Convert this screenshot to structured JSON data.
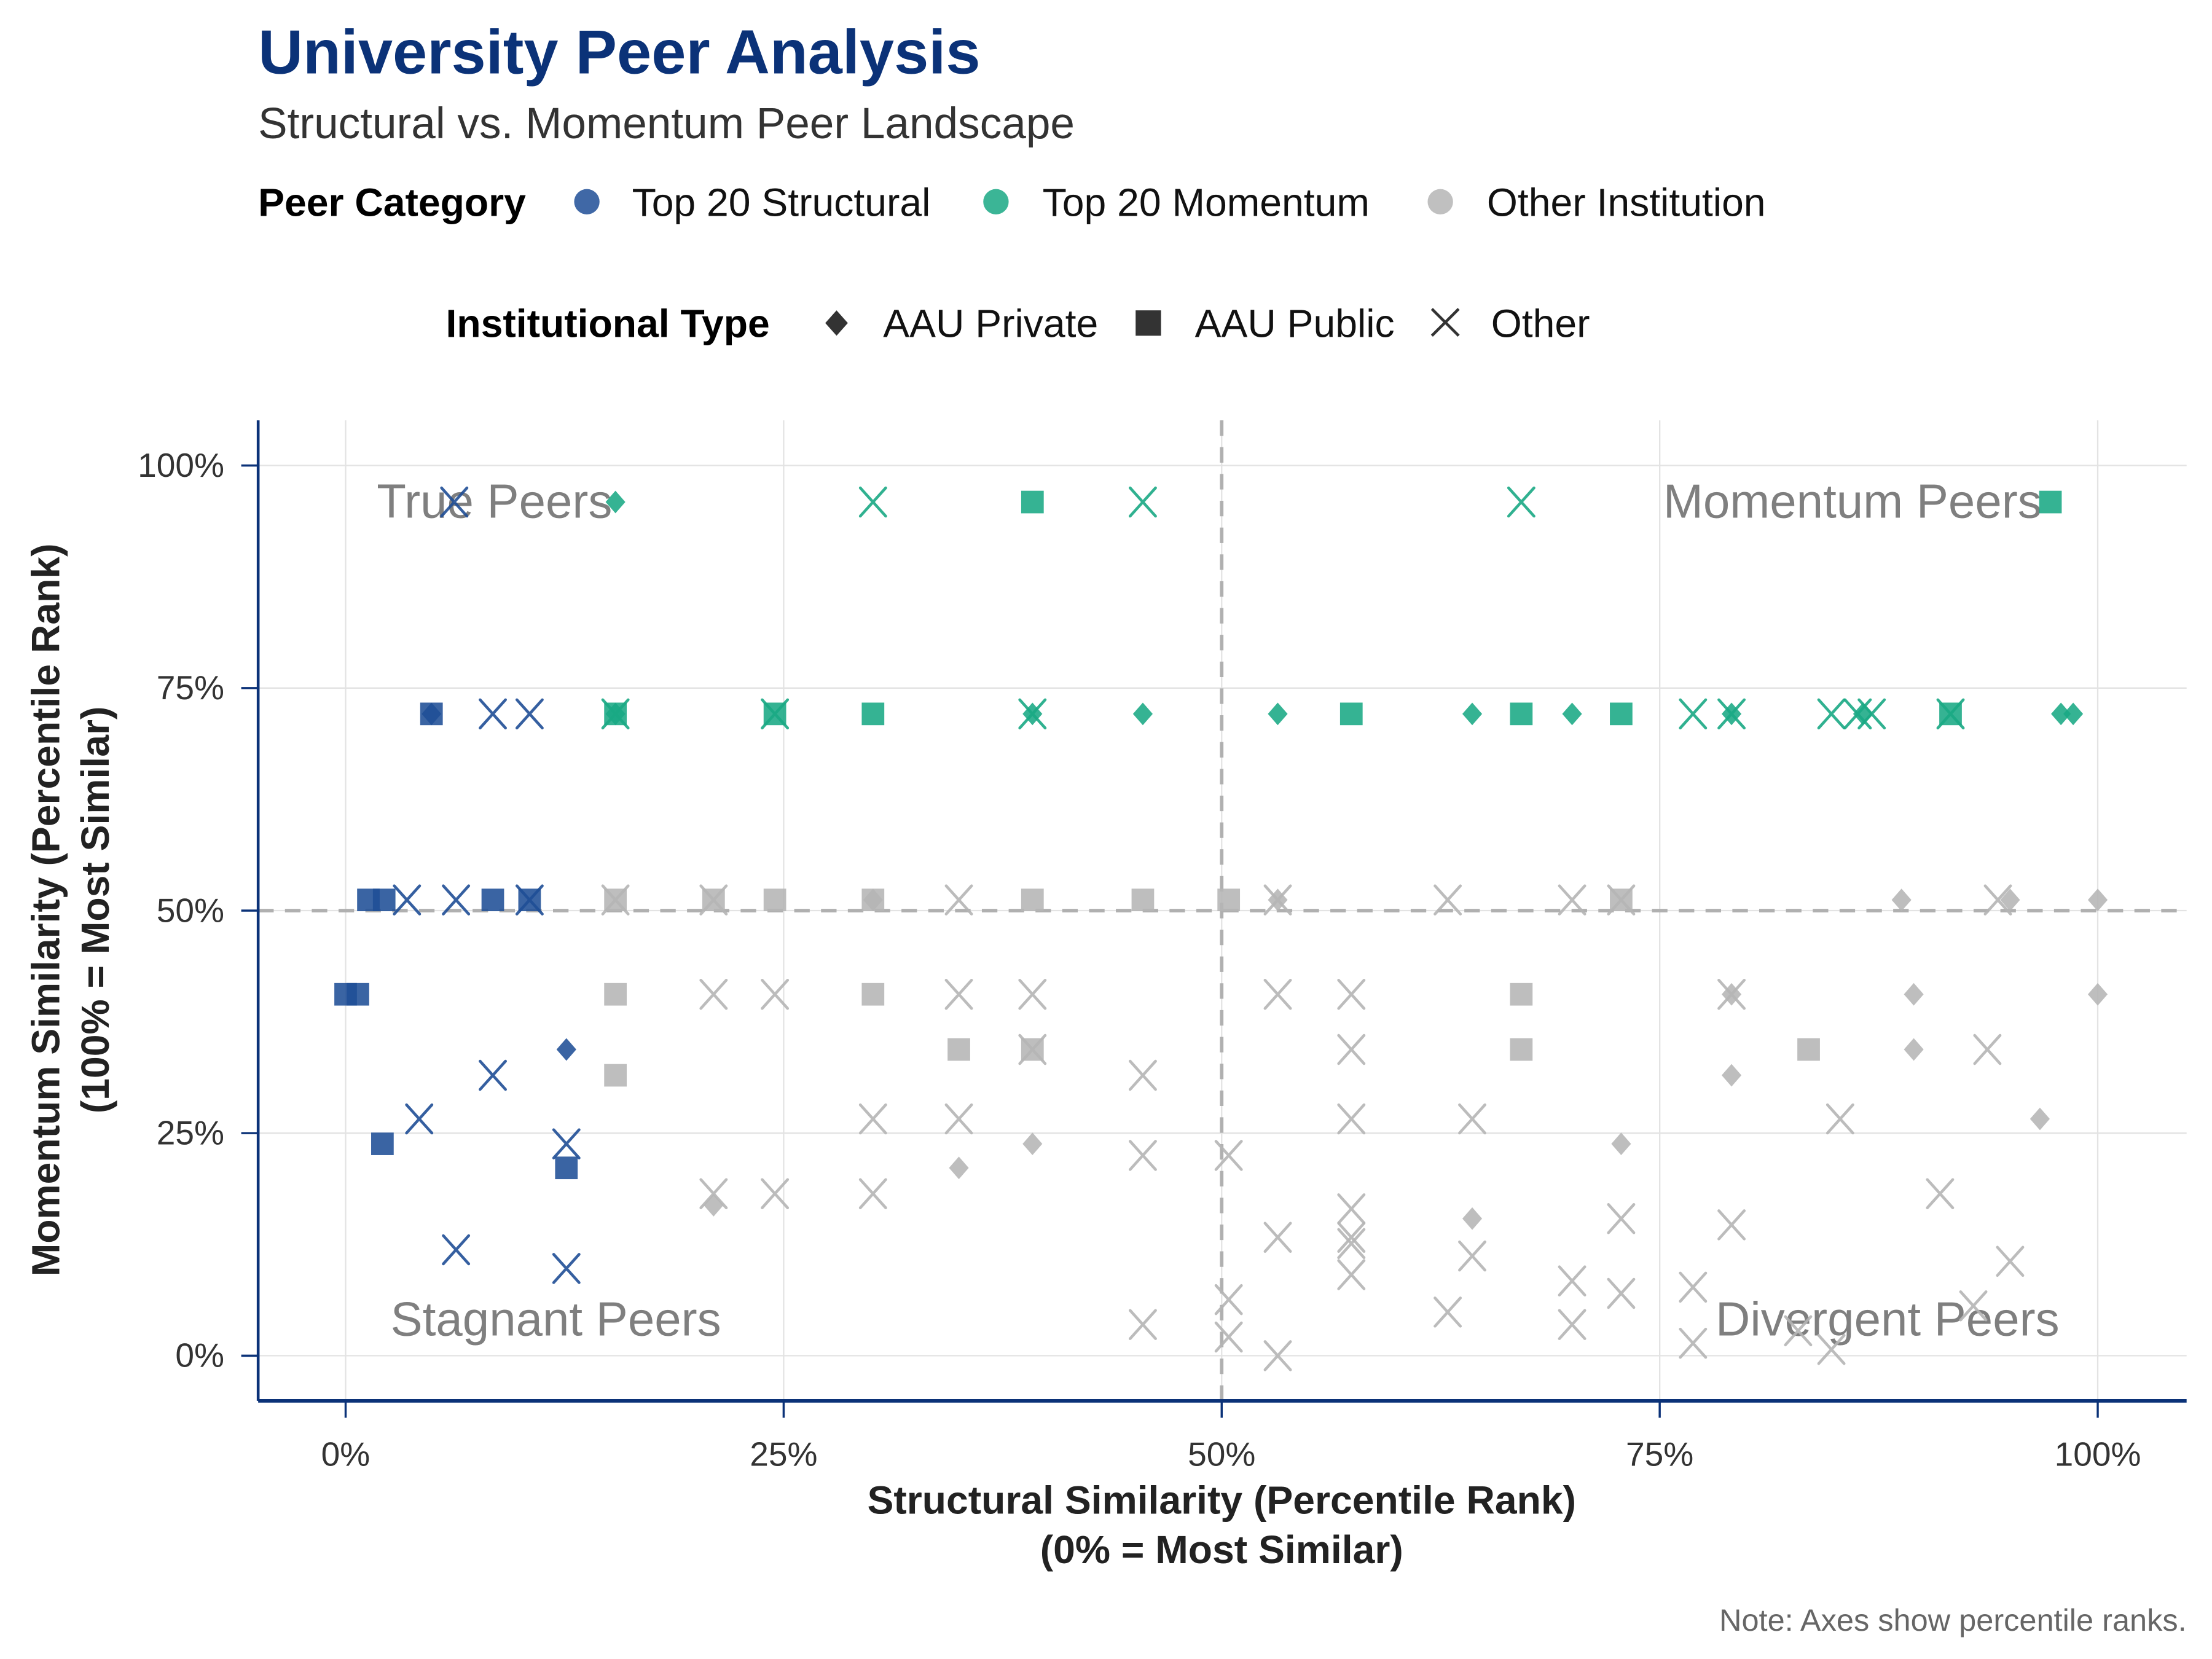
{
  "colors": {
    "title": "#0b3278",
    "top20_structural": "#1f4e96",
    "top20_momentum": "#19a884",
    "other": "#b5b5b5",
    "axis": "#0b3278",
    "grid": "#e3e3e3",
    "reference_line": "#b0b0b0",
    "quadrant_label": "#7f7f7f"
  },
  "chart_data": {
    "type": "scatter",
    "title": "University Peer Analysis",
    "subtitle": "Structural vs. Momentum Peer Landscape",
    "xlabel_lines": [
      "Structural Similarity (Percentile Rank)",
      "(0% = Most Similar)"
    ],
    "ylabel_lines": [
      "Momentum Similarity (Percentile Rank)",
      "(100% = Most Similar)"
    ],
    "xlim": [
      -5,
      105
    ],
    "ylim": [
      -5,
      105
    ],
    "x_ticks": [
      0,
      25,
      50,
      75,
      100
    ],
    "y_ticks": [
      0,
      25,
      50,
      75,
      100
    ],
    "x_tick_labels": [
      "0%",
      "25%",
      "50%",
      "75%",
      "100%"
    ],
    "y_tick_labels": [
      "0%",
      "25%",
      "50%",
      "75%",
      "100%"
    ],
    "grid": true,
    "reference_lines": {
      "x": 50,
      "y": 50,
      "style": "dashed"
    },
    "quadrant_labels": [
      {
        "text": "True Peers",
        "x": 8.5,
        "y": 95.9
      },
      {
        "text": "Momentum Peers",
        "x": 86,
        "y": 95.9
      },
      {
        "text": "Stagnant Peers",
        "x": 12,
        "y": 4
      },
      {
        "text": "Divergent Peers",
        "x": 88,
        "y": 4
      }
    ],
    "note": "Note: Axes show percentile ranks.",
    "legends": [
      {
        "title": "Peer Category",
        "key": "category",
        "placement": "top",
        "entries": [
          {
            "id": "structural",
            "label": "Top 20 Structural",
            "color": "#1f4e96"
          },
          {
            "id": "momentum",
            "label": "Top 20 Momentum",
            "color": "#19a884"
          },
          {
            "id": "other",
            "label": "Other Institution",
            "color": "#b5b5b5"
          }
        ]
      },
      {
        "title": "Institutional Type",
        "key": "type",
        "placement": "top",
        "entries": [
          {
            "id": "private",
            "label": "AAU Private",
            "shape": "diamond"
          },
          {
            "id": "public",
            "label": "AAU Public",
            "shape": "square"
          },
          {
            "id": "other",
            "label": "Other",
            "shape": "x"
          }
        ]
      }
    ],
    "series": [
      {
        "name": "Top 20 Structural",
        "category": "structural",
        "points": [
          {
            "x": 6.2,
            "y": 95.9,
            "type": "other"
          },
          {
            "x": 4.9,
            "y": 72.1,
            "type": "public"
          },
          {
            "x": 4.9,
            "y": 72.1,
            "type": "private"
          },
          {
            "x": 8.4,
            "y": 72.1,
            "type": "other"
          },
          {
            "x": 10.5,
            "y": 72.1,
            "type": "other"
          },
          {
            "x": 1.3,
            "y": 51.2,
            "type": "public"
          },
          {
            "x": 2.2,
            "y": 51.2,
            "type": "public"
          },
          {
            "x": 3.5,
            "y": 51.2,
            "type": "other"
          },
          {
            "x": 6.3,
            "y": 51.2,
            "type": "other"
          },
          {
            "x": 8.4,
            "y": 51.2,
            "type": "public"
          },
          {
            "x": 10.5,
            "y": 51.2,
            "type": "public"
          },
          {
            "x": 10.5,
            "y": 51.2,
            "type": "other"
          },
          {
            "x": 0.0,
            "y": 40.6,
            "type": "public"
          },
          {
            "x": 0.7,
            "y": 40.6,
            "type": "public"
          },
          {
            "x": 12.6,
            "y": 34.4,
            "type": "private"
          },
          {
            "x": 8.4,
            "y": 31.5,
            "type": "other"
          },
          {
            "x": 4.2,
            "y": 26.6,
            "type": "other"
          },
          {
            "x": 2.1,
            "y": 23.8,
            "type": "public"
          },
          {
            "x": 12.6,
            "y": 23.8,
            "type": "other"
          },
          {
            "x": 12.6,
            "y": 21.1,
            "type": "public"
          },
          {
            "x": 6.3,
            "y": 11.9,
            "type": "other"
          },
          {
            "x": 12.6,
            "y": 9.8,
            "type": "other"
          }
        ]
      },
      {
        "name": "Top 20 Momentum",
        "category": "momentum",
        "points": [
          {
            "x": 15.4,
            "y": 95.9,
            "type": "private"
          },
          {
            "x": 30.1,
            "y": 95.9,
            "type": "other"
          },
          {
            "x": 39.2,
            "y": 95.9,
            "type": "public"
          },
          {
            "x": 45.5,
            "y": 95.9,
            "type": "other"
          },
          {
            "x": 67.1,
            "y": 95.9,
            "type": "other"
          },
          {
            "x": 97.3,
            "y": 95.9,
            "type": "public"
          },
          {
            "x": 15.4,
            "y": 72.1,
            "type": "public"
          },
          {
            "x": 15.4,
            "y": 72.1,
            "type": "other"
          },
          {
            "x": 15.4,
            "y": 72.1,
            "type": "private"
          },
          {
            "x": 24.5,
            "y": 72.1,
            "type": "public"
          },
          {
            "x": 24.5,
            "y": 72.1,
            "type": "other"
          },
          {
            "x": 30.1,
            "y": 72.1,
            "type": "public"
          },
          {
            "x": 39.2,
            "y": 72.1,
            "type": "private"
          },
          {
            "x": 39.2,
            "y": 72.1,
            "type": "other"
          },
          {
            "x": 45.5,
            "y": 72.1,
            "type": "private"
          },
          {
            "x": 53.2,
            "y": 72.1,
            "type": "private"
          },
          {
            "x": 57.4,
            "y": 72.1,
            "type": "public"
          },
          {
            "x": 64.3,
            "y": 72.1,
            "type": "private"
          },
          {
            "x": 67.1,
            "y": 72.1,
            "type": "public"
          },
          {
            "x": 70.0,
            "y": 72.1,
            "type": "private"
          },
          {
            "x": 72.8,
            "y": 72.1,
            "type": "public"
          },
          {
            "x": 76.9,
            "y": 72.1,
            "type": "other"
          },
          {
            "x": 79.1,
            "y": 72.1,
            "type": "other"
          },
          {
            "x": 79.1,
            "y": 72.1,
            "type": "private"
          },
          {
            "x": 84.8,
            "y": 72.1,
            "type": "other"
          },
          {
            "x": 86.3,
            "y": 72.1,
            "type": "other"
          },
          {
            "x": 86.6,
            "y": 72.1,
            "type": "private"
          },
          {
            "x": 87.1,
            "y": 72.1,
            "type": "other"
          },
          {
            "x": 91.6,
            "y": 72.1,
            "type": "public"
          },
          {
            "x": 91.6,
            "y": 72.1,
            "type": "other"
          },
          {
            "x": 97.9,
            "y": 72.1,
            "type": "private"
          },
          {
            "x": 98.6,
            "y": 72.1,
            "type": "private"
          }
        ]
      },
      {
        "name": "Other Institution",
        "category": "other",
        "points": [
          {
            "x": 15.4,
            "y": 51.2,
            "type": "public"
          },
          {
            "x": 15.4,
            "y": 51.2,
            "type": "other"
          },
          {
            "x": 21.0,
            "y": 51.2,
            "type": "public"
          },
          {
            "x": 21.0,
            "y": 51.2,
            "type": "other"
          },
          {
            "x": 24.5,
            "y": 51.2,
            "type": "public"
          },
          {
            "x": 30.1,
            "y": 51.2,
            "type": "public"
          },
          {
            "x": 30.1,
            "y": 51.2,
            "type": "private"
          },
          {
            "x": 35.0,
            "y": 51.2,
            "type": "other"
          },
          {
            "x": 39.2,
            "y": 51.2,
            "type": "public"
          },
          {
            "x": 45.5,
            "y": 51.2,
            "type": "public"
          },
          {
            "x": 50.4,
            "y": 51.2,
            "type": "public"
          },
          {
            "x": 53.2,
            "y": 51.2,
            "type": "private"
          },
          {
            "x": 53.2,
            "y": 51.2,
            "type": "other"
          },
          {
            "x": 62.9,
            "y": 51.2,
            "type": "other"
          },
          {
            "x": 70.0,
            "y": 51.2,
            "type": "other"
          },
          {
            "x": 72.8,
            "y": 51.2,
            "type": "public"
          },
          {
            "x": 72.8,
            "y": 51.2,
            "type": "other"
          },
          {
            "x": 88.8,
            "y": 51.2,
            "type": "private"
          },
          {
            "x": 94.3,
            "y": 51.2,
            "type": "other"
          },
          {
            "x": 95.0,
            "y": 51.2,
            "type": "private"
          },
          {
            "x": 100.0,
            "y": 51.2,
            "type": "private"
          },
          {
            "x": 15.4,
            "y": 40.6,
            "type": "public"
          },
          {
            "x": 21.0,
            "y": 40.6,
            "type": "other"
          },
          {
            "x": 24.5,
            "y": 40.6,
            "type": "other"
          },
          {
            "x": 30.1,
            "y": 40.6,
            "type": "public"
          },
          {
            "x": 35.0,
            "y": 40.6,
            "type": "other"
          },
          {
            "x": 39.2,
            "y": 40.6,
            "type": "other"
          },
          {
            "x": 53.2,
            "y": 40.6,
            "type": "other"
          },
          {
            "x": 57.4,
            "y": 40.6,
            "type": "other"
          },
          {
            "x": 67.1,
            "y": 40.6,
            "type": "public"
          },
          {
            "x": 79.1,
            "y": 40.6,
            "type": "other"
          },
          {
            "x": 79.1,
            "y": 40.6,
            "type": "private"
          },
          {
            "x": 89.5,
            "y": 40.6,
            "type": "private"
          },
          {
            "x": 100.0,
            "y": 40.6,
            "type": "private"
          },
          {
            "x": 35.0,
            "y": 34.4,
            "type": "public"
          },
          {
            "x": 39.2,
            "y": 34.4,
            "type": "public"
          },
          {
            "x": 39.2,
            "y": 34.4,
            "type": "other"
          },
          {
            "x": 57.4,
            "y": 34.4,
            "type": "other"
          },
          {
            "x": 67.1,
            "y": 34.4,
            "type": "public"
          },
          {
            "x": 83.5,
            "y": 34.4,
            "type": "public"
          },
          {
            "x": 89.5,
            "y": 34.4,
            "type": "private"
          },
          {
            "x": 93.7,
            "y": 34.4,
            "type": "other"
          },
          {
            "x": 15.4,
            "y": 31.5,
            "type": "public"
          },
          {
            "x": 45.5,
            "y": 31.5,
            "type": "other"
          },
          {
            "x": 79.1,
            "y": 31.5,
            "type": "private"
          },
          {
            "x": 30.1,
            "y": 26.6,
            "type": "other"
          },
          {
            "x": 35.0,
            "y": 26.6,
            "type": "other"
          },
          {
            "x": 57.4,
            "y": 26.6,
            "type": "other"
          },
          {
            "x": 64.3,
            "y": 26.6,
            "type": "other"
          },
          {
            "x": 85.3,
            "y": 26.6,
            "type": "other"
          },
          {
            "x": 96.7,
            "y": 26.6,
            "type": "private"
          },
          {
            "x": 39.2,
            "y": 23.8,
            "type": "private"
          },
          {
            "x": 72.8,
            "y": 23.8,
            "type": "private"
          },
          {
            "x": 45.5,
            "y": 22.5,
            "type": "other"
          },
          {
            "x": 50.4,
            "y": 22.5,
            "type": "other"
          },
          {
            "x": 35.0,
            "y": 21.1,
            "type": "private"
          },
          {
            "x": 21.0,
            "y": 18.2,
            "type": "other"
          },
          {
            "x": 24.5,
            "y": 18.2,
            "type": "other"
          },
          {
            "x": 30.1,
            "y": 18.2,
            "type": "other"
          },
          {
            "x": 91.0,
            "y": 18.2,
            "type": "other"
          },
          {
            "x": 21.0,
            "y": 16.9,
            "type": "private"
          },
          {
            "x": 57.4,
            "y": 16.5,
            "type": "other"
          },
          {
            "x": 64.3,
            "y": 15.4,
            "type": "private"
          },
          {
            "x": 72.8,
            "y": 15.4,
            "type": "other"
          },
          {
            "x": 79.1,
            "y": 14.7,
            "type": "other"
          },
          {
            "x": 53.2,
            "y": 13.3,
            "type": "other"
          },
          {
            "x": 57.4,
            "y": 13.3,
            "type": "other"
          },
          {
            "x": 57.4,
            "y": 12.6,
            "type": "other"
          },
          {
            "x": 64.3,
            "y": 11.2,
            "type": "other"
          },
          {
            "x": 95.0,
            "y": 10.6,
            "type": "other"
          },
          {
            "x": 57.4,
            "y": 9.1,
            "type": "other"
          },
          {
            "x": 70.0,
            "y": 8.4,
            "type": "other"
          },
          {
            "x": 76.9,
            "y": 7.7,
            "type": "other"
          },
          {
            "x": 72.8,
            "y": 7.0,
            "type": "other"
          },
          {
            "x": 50.4,
            "y": 6.3,
            "type": "other"
          },
          {
            "x": 92.9,
            "y": 5.6,
            "type": "other"
          },
          {
            "x": 62.9,
            "y": 4.9,
            "type": "other"
          },
          {
            "x": 45.5,
            "y": 3.5,
            "type": "other"
          },
          {
            "x": 70.0,
            "y": 3.5,
            "type": "other"
          },
          {
            "x": 82.9,
            "y": 2.8,
            "type": "other"
          },
          {
            "x": 50.4,
            "y": 2.1,
            "type": "other"
          },
          {
            "x": 76.9,
            "y": 1.4,
            "type": "other"
          },
          {
            "x": 84.8,
            "y": 0.7,
            "type": "other"
          },
          {
            "x": 53.2,
            "y": 0.0,
            "type": "other"
          }
        ]
      }
    ]
  }
}
